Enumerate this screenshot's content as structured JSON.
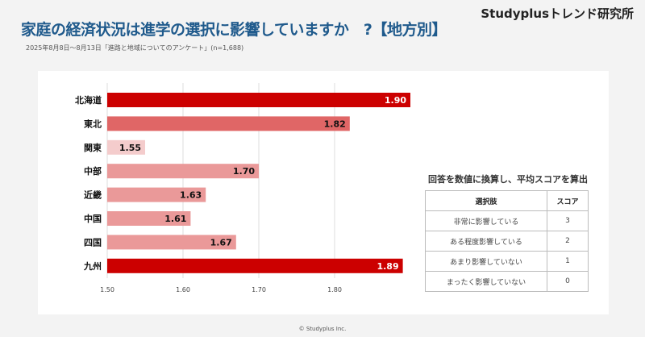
{
  "brand": "Studyplusトレンド研究所",
  "title": "家庭の経済状況は進学の選択に影響していますか　?【地方別】",
  "subtitle": "2025年8月8日～8月13日「進路と地域についてのアンケート」(n=1,688)",
  "chart_data": {
    "type": "bar",
    "orientation": "horizontal",
    "categories": [
      "北海道",
      "東北",
      "関東",
      "中部",
      "近畿",
      "中国",
      "四国",
      "九州"
    ],
    "values": [
      1.9,
      1.82,
      1.55,
      1.7,
      1.63,
      1.61,
      1.67,
      1.89
    ],
    "value_labels": [
      "1.90",
      "1.82",
      "1.55",
      "1.70",
      "1.63",
      "1.61",
      "1.67",
      "1.89"
    ],
    "colors": [
      "#cc0000",
      "#e06666",
      "#f4cccc",
      "#ea9999",
      "#ea9999",
      "#ea9999",
      "#ea9999",
      "#cc0000"
    ],
    "xlim": [
      1.5,
      1.9
    ],
    "xticks": [
      "1.50",
      "1.60",
      "1.70",
      "1.80"
    ],
    "grid": true
  },
  "score_table": {
    "title": "回答を数値に換算し、平均スコアを算出",
    "headers": [
      "選択肢",
      "スコア"
    ],
    "rows": [
      [
        "非常に影響している",
        "3"
      ],
      [
        "ある程度影響している",
        "2"
      ],
      [
        "あまり影響していない",
        "1"
      ],
      [
        "まったく影響していない",
        "0"
      ]
    ]
  },
  "footer": "© Studyplus Inc."
}
